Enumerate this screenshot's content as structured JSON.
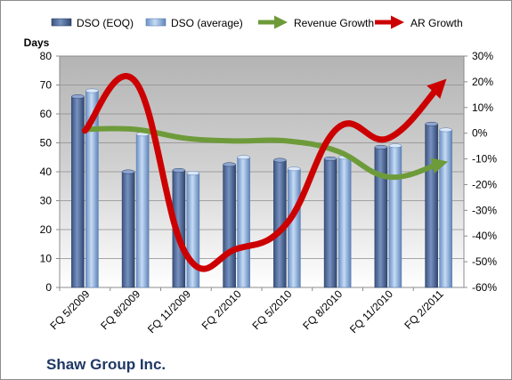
{
  "chart_data": {
    "type": "bar",
    "title": "Shaw Group Inc.",
    "ylabel_left": "Days",
    "categories": [
      "FQ 5/2009",
      "FQ 8/2009",
      "FQ 11/2009",
      "FQ 2/2010",
      "FQ 5/2010",
      "FQ 8/2010",
      "FQ 11/2010",
      "FQ 2/2011"
    ],
    "ylim_left": [
      0,
      80
    ],
    "yticks_left": [
      "0",
      "10",
      "20",
      "30",
      "40",
      "50",
      "60",
      "70",
      "80"
    ],
    "ylim_right": [
      -60,
      30
    ],
    "yticks_right": [
      "-60%",
      "-50%",
      "-40%",
      "-30%",
      "-20%",
      "-10%",
      "0%",
      "10%",
      "20%",
      "30%"
    ],
    "legend_position": "top",
    "grid": "horizontal",
    "series": [
      {
        "name": "DSO (EOQ)",
        "kind": "bar",
        "axis": "left",
        "color": "#4f6a9a",
        "values": [
          66,
          40,
          40.5,
          42.5,
          44,
          44.5,
          48.5,
          56.5
        ]
      },
      {
        "name": "DSO (average)",
        "kind": "bar",
        "axis": "left",
        "color": "#8fb4e3",
        "values": [
          68,
          53,
          39.5,
          45,
          41,
          45,
          49,
          54.5
        ]
      },
      {
        "name": "Revenue Growth",
        "kind": "line",
        "axis": "right",
        "color": "#6e9b3a",
        "values": [
          1.5,
          1.5,
          -2,
          -3,
          -3,
          -7,
          -17,
          -12
        ]
      },
      {
        "name": "AR Growth",
        "kind": "line",
        "axis": "right",
        "color": "#cc0000",
        "values": [
          1,
          20,
          -47,
          -45,
          -35,
          2,
          -2,
          18
        ]
      }
    ]
  }
}
